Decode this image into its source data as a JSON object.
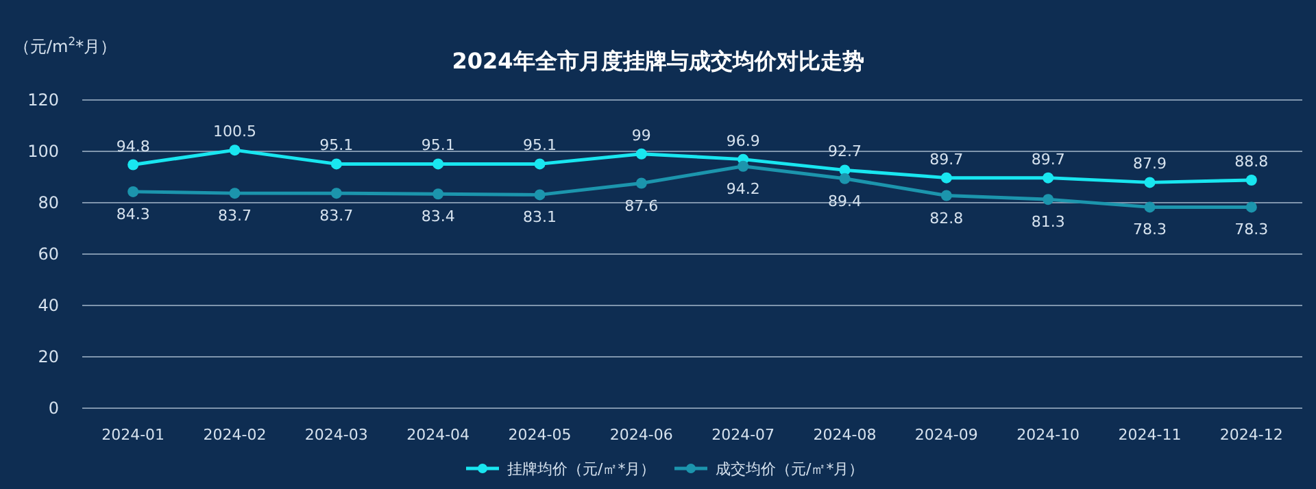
{
  "chart_data": {
    "type": "line",
    "title": "2024年全市月度挂牌与成交均价对比走势",
    "ylabel": "（元/m$^{2}$*月）",
    "categories": [
      "2024-01",
      "2024-02",
      "2024-03",
      "2024-04",
      "2024-05",
      "2024-06",
      "2024-07",
      "2024-08",
      "2024-09",
      "2024-10",
      "2024-11",
      "2024-12"
    ],
    "series": [
      {
        "name": "挂牌均价（元/㎡*月）",
        "color": "#19e6f0",
        "values": [
          94.8,
          100.5,
          95.1,
          95.1,
          95.1,
          99,
          96.9,
          92.7,
          89.7,
          89.7,
          87.9,
          88.8
        ]
      },
      {
        "name": "成交均价（元/㎡*月）",
        "color": "#1c95ad",
        "values": [
          84.3,
          83.7,
          83.7,
          83.4,
          83.1,
          87.6,
          94.2,
          89.4,
          82.8,
          81.3,
          78.3,
          78.3
        ]
      }
    ],
    "ylim": [
      0,
      120
    ],
    "yticks": [
      0,
      20,
      40,
      60,
      80,
      100,
      120
    ],
    "grid": "y",
    "legend": "bottom",
    "marker": "circle",
    "line_style": "solid",
    "data_labels": true
  }
}
